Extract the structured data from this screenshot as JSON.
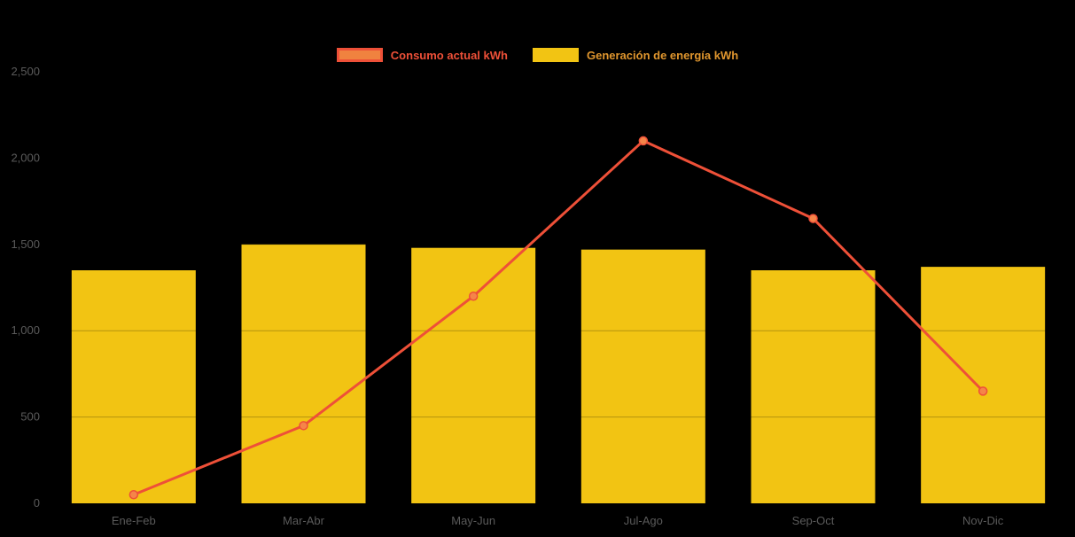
{
  "chart_data": {
    "type": "bar",
    "subtype": "bar-with-line-overlay",
    "categories": [
      "Ene-Feb",
      "Mar-Abr",
      "May-Jun",
      "Jul-Ago",
      "Sep-Oct",
      "Nov-Dic"
    ],
    "series": [
      {
        "name": "Consumo actual kWh",
        "type": "line",
        "color": "#ee5038",
        "marker_fill": "#f58549",
        "values": [
          50,
          450,
          1200,
          2100,
          1650,
          650
        ]
      },
      {
        "name": "Generación de energía kWh",
        "type": "bar",
        "color": "#f2c413",
        "values": [
          1350,
          1500,
          1480,
          1470,
          1350,
          1370
        ]
      }
    ],
    "ylim": [
      0,
      2500
    ],
    "yticks": [
      0,
      500,
      1000,
      1500,
      2000,
      2500
    ],
    "ytick_labels": [
      "0",
      "500",
      "1,000",
      "1,500",
      "2,000",
      "2,500"
    ],
    "legend_position": "top-center",
    "grid": "subtle horizontal lines visible only across bars"
  },
  "legend": {
    "items": [
      {
        "label": "Consumo actual kWh",
        "swatch_fill": "#f0823f",
        "swatch_border": "#ee5038",
        "text_color": "#ee5038"
      },
      {
        "label": "Generación de energía kWh",
        "swatch_fill": "#f2c413",
        "swatch_border": "#f2c413",
        "text_color": "#e0962e"
      }
    ]
  },
  "colors": {
    "background": "#000000",
    "axis_text": "#5a5a5a",
    "gridline": "rgba(0,0,0,0.25)"
  }
}
